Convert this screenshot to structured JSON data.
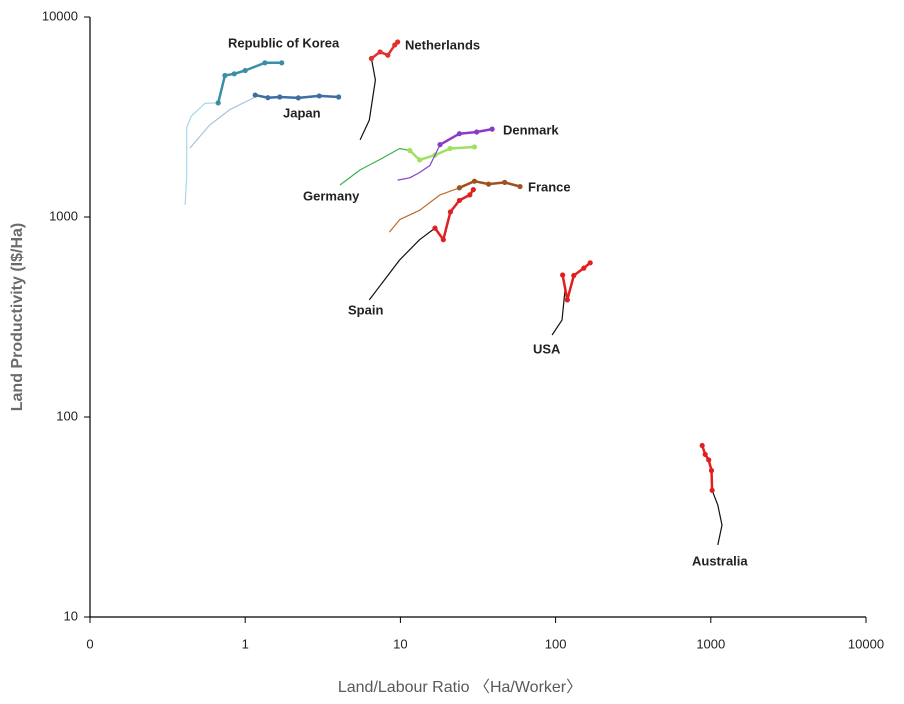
{
  "chart_data": {
    "type": "line",
    "xlabel": "Land/Labour Ratio 〈Ha/Worker〉",
    "ylabel": "Land Productivity (I$/Ha)",
    "xscale": "log",
    "yscale": "log",
    "xlim": [
      0.1,
      10000
    ],
    "ylim": [
      10,
      10000
    ],
    "xticks": [
      {
        "value": 0.1,
        "label": "0"
      },
      1,
      10,
      100,
      1000,
      10000
    ],
    "yticks": [
      10,
      100,
      1000,
      10000
    ],
    "series": [
      {
        "color": "#a8d8ea",
        "x": [
          0.41,
          0.42,
          0.42,
          0.45,
          0.55,
          0.67
        ],
        "y": [
          1150,
          1600,
          2800,
          3200,
          3700,
          3720
        ]
      },
      {
        "name": "Republic of Korea",
        "color": "#3a8ea8",
        "markers": true,
        "x": [
          0.67,
          0.74,
          0.85,
          1.0,
          1.34,
          1.72
        ],
        "y": [
          3720,
          5100,
          5200,
          5400,
          5900,
          5900
        ]
      },
      {
        "color": "#a9c4e0",
        "x": [
          0.44,
          0.59,
          0.8,
          1.16
        ],
        "y": [
          2210,
          2880,
          3450,
          3980
        ]
      },
      {
        "name": "Japan",
        "color": "#3d6fa3",
        "markers": true,
        "x": [
          1.16,
          1.4,
          1.67,
          2.2,
          3.0,
          4.0
        ],
        "y": [
          4070,
          3950,
          3980,
          3940,
          4030,
          3980
        ]
      },
      {
        "color": "#111111",
        "x": [
          5.5,
          6.3,
          6.9,
          6.5
        ],
        "y": [
          2430,
          3050,
          4840,
          6200
        ]
      },
      {
        "name": "Netherlands",
        "color": "#e03030",
        "markers": true,
        "x": [
          6.5,
          7.4,
          8.3,
          9.2,
          9.6
        ],
        "y": [
          6200,
          6690,
          6440,
          7250,
          7500
        ]
      },
      {
        "color": "#3cb34a",
        "x": [
          4.08,
          5.5,
          7.3,
          9.9,
          11.5
        ],
        "y": [
          1445,
          1720,
          1930,
          2200,
          2150
        ]
      },
      {
        "name": "Germany",
        "color": "#9ee060",
        "markers": true,
        "x": [
          11.5,
          13.3,
          16.7,
          20.9,
          30
        ],
        "y": [
          2150,
          1930,
          2040,
          2200,
          2240
        ]
      },
      {
        "color": "#8a3cc8",
        "x": [
          9.6,
          11.5,
          13.3,
          15.5,
          18.0
        ],
        "y": [
          1530,
          1570,
          1670,
          1810,
          2300
        ]
      },
      {
        "name": "Denmark",
        "color": "#8a3cc8",
        "markers": true,
        "x": [
          18.0,
          24,
          31,
          39
        ],
        "y": [
          2300,
          2610,
          2660,
          2750
        ]
      },
      {
        "color": "#c06a2a",
        "x": [
          8.5,
          9.9,
          13.3,
          18,
          24
        ],
        "y": [
          840,
          970,
          1080,
          1290,
          1400
        ]
      },
      {
        "name": "France",
        "color": "#a0521c",
        "markers": true,
        "x": [
          24,
          30,
          37,
          47,
          59
        ],
        "y": [
          1400,
          1510,
          1460,
          1490,
          1420
        ]
      },
      {
        "color": "#111111",
        "x": [
          6.3,
          7.9,
          9.9,
          13.3,
          16.7
        ],
        "y": [
          385,
          485,
          610,
          770,
          880
        ]
      },
      {
        "name": "Spain",
        "color": "#e02020",
        "markers": true,
        "x": [
          16.7,
          18.9,
          21,
          24,
          28,
          29.5
        ],
        "y": [
          880,
          770,
          1060,
          1210,
          1290,
          1370
        ]
      },
      {
        "color": "#111111",
        "x": [
          95,
          110,
          115,
          111
        ],
        "y": [
          257,
          305,
          430,
          513
        ]
      },
      {
        "name": "USA",
        "color": "#e02020",
        "markers": true,
        "x": [
          111,
          119,
          131,
          152,
          167
        ],
        "y": [
          513,
          385,
          510,
          555,
          590
        ]
      },
      {
        "color": "#111111",
        "x": [
          1110,
          1180,
          1110,
          1020
        ],
        "y": [
          22.9,
          28.8,
          36.3,
          43
        ]
      },
      {
        "name": "Australia",
        "color": "#e02020",
        "markers": true,
        "x": [
          1020,
          1010,
          970,
          920,
          880
        ],
        "y": [
          43,
          54,
          61,
          65,
          72
        ]
      }
    ]
  }
}
